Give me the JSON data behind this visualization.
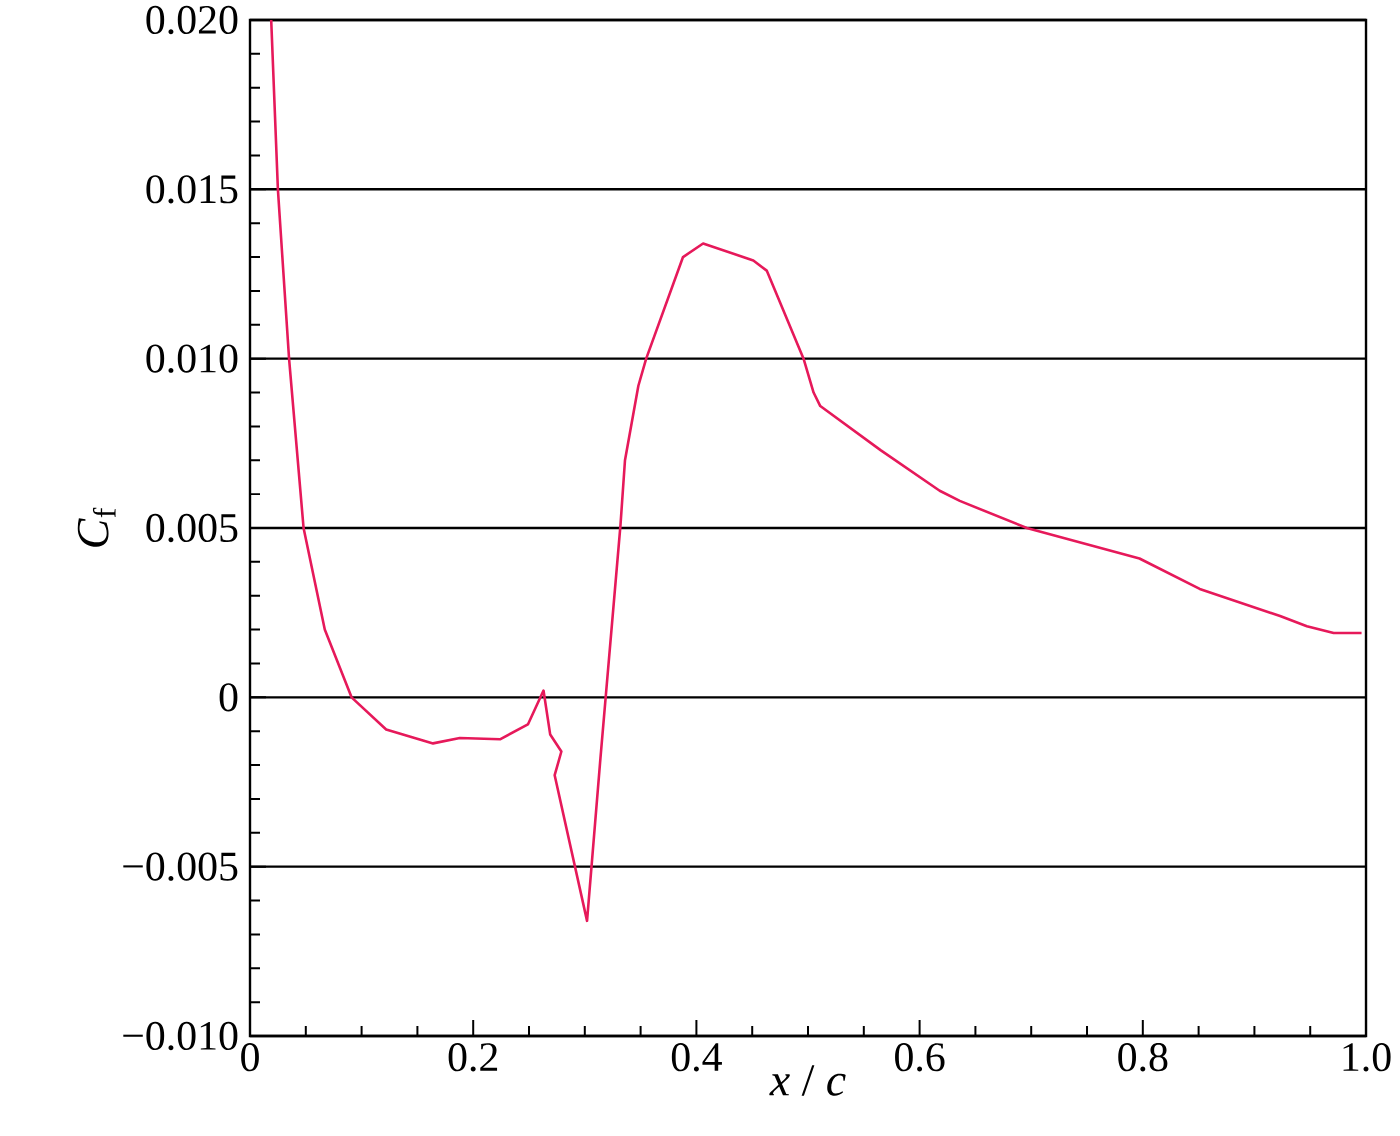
{
  "chart_data": {
    "type": "line",
    "xlabel": "*x* / *c*",
    "ylabel": "*C*$_{f}$",
    "xlim": [
      0,
      1
    ],
    "ylim": [
      -0.01,
      0.02
    ],
    "xticks": [
      0,
      0.2,
      0.4,
      0.6,
      0.8,
      {
        "value": 1,
        "label": "1.0"
      }
    ],
    "yticks": [
      {
        "value": -0.01,
        "label": "−0.010"
      },
      {
        "value": -0.005,
        "label": "−0.005"
      },
      0,
      0.005,
      {
        "value": 0.01,
        "label": "0.010"
      },
      0.015,
      {
        "value": 0.02,
        "label": "0.020"
      }
    ],
    "grid": "y",
    "line_style": "solid",
    "marker": "none",
    "series": [
      {
        "color": "#e6195a",
        "x": [
          0.019,
          0.025,
          0.035,
          0.048,
          0.067,
          0.091,
          0.122,
          0.164,
          0.188,
          0.224,
          0.249,
          0.263,
          0.269,
          0.279,
          0.273,
          0.302,
          0.314,
          0.332,
          0.336,
          0.348,
          0.355,
          0.388,
          0.406,
          0.451,
          0.463,
          0.496,
          0.505,
          0.511,
          0.565,
          0.618,
          0.636,
          0.696,
          0.797,
          0.851,
          0.923,
          0.947,
          0.971,
          0.996
        ],
        "values": [
          0.02,
          0.015,
          0.01,
          0.005,
          0.002,
          0,
          -0.00095,
          -0.00136,
          -0.0012,
          -0.00124,
          -0.0008,
          0.0002,
          -0.0011,
          -0.0016,
          -0.0023,
          -0.0066,
          -0.0018,
          0.0051,
          0.007,
          0.0092,
          0.01,
          0.013,
          0.0134,
          0.0129,
          0.0126,
          0.01,
          0.009,
          0.0086,
          0.0073,
          0.0061,
          0.0058,
          0.005,
          0.0041,
          0.0032,
          0.0024,
          0.0021,
          0.0019,
          0.0019
        ]
      }
    ]
  }
}
